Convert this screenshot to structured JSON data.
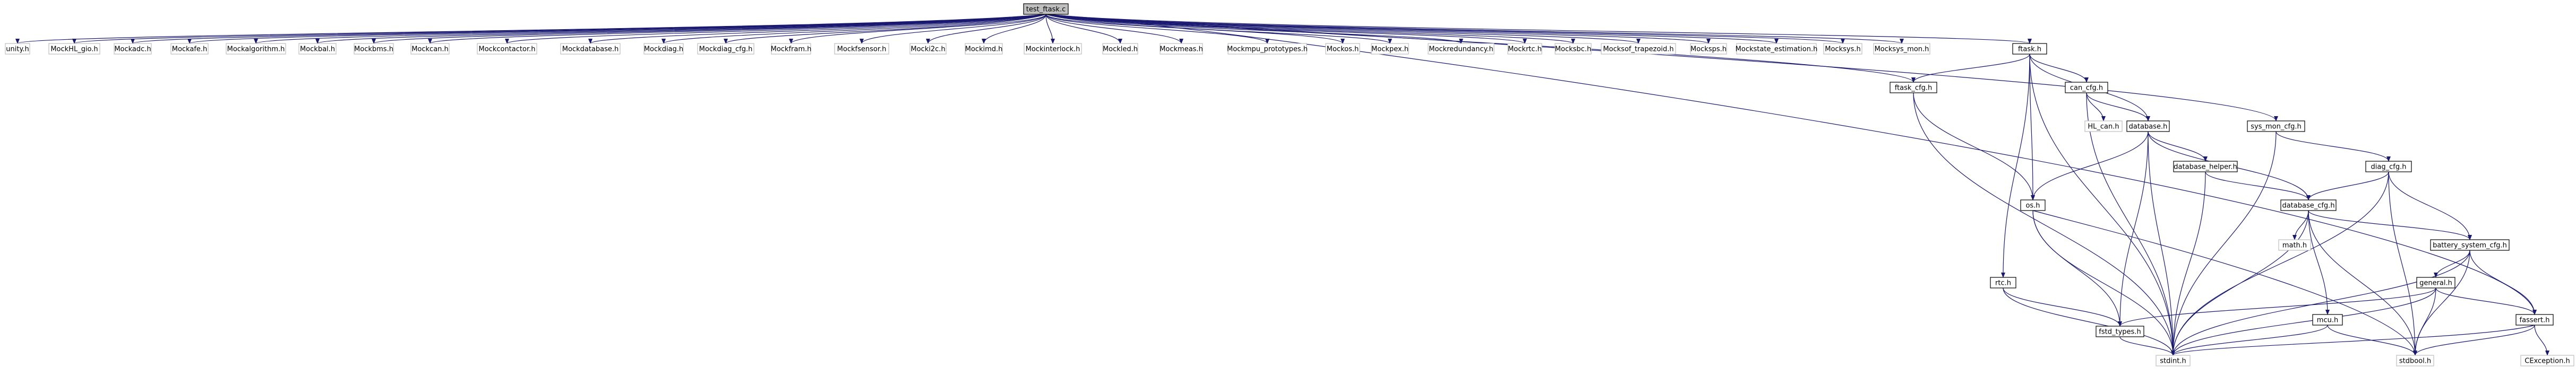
{
  "colors": {
    "root_fill": "#bfbfbf",
    "node_fill": "#ffffff",
    "node_border": "#000000",
    "external_border": "#bfbfbf",
    "edge": "#191970",
    "text": "#000000"
  },
  "graph": {
    "root": {
      "id": "root",
      "label": "test_ftask.c"
    },
    "nodes": [
      {
        "id": "unity",
        "label": "unity.h",
        "external": true
      },
      {
        "id": "mhal_gpio",
        "label": "MockHL_gio.h",
        "external": true
      },
      {
        "id": "madc",
        "label": "Mockadc.h",
        "external": true
      },
      {
        "id": "mafe",
        "label": "Mockafe.h",
        "external": true
      },
      {
        "id": "malgo",
        "label": "Mockalgorithm.h",
        "external": true
      },
      {
        "id": "mbal",
        "label": "Mockbal.h",
        "external": true
      },
      {
        "id": "mbms",
        "label": "Mockbms.h",
        "external": true
      },
      {
        "id": "mcan",
        "label": "Mockcan.h",
        "external": true
      },
      {
        "id": "mcontactor",
        "label": "Mockcontactor.h",
        "external": true
      },
      {
        "id": "mdatabase",
        "label": "Mockdatabase.h",
        "external": true
      },
      {
        "id": "mdiag",
        "label": "Mockdiag.h",
        "external": true
      },
      {
        "id": "mdiagcfg",
        "label": "Mockdiag_cfg.h",
        "external": true
      },
      {
        "id": "mfram",
        "label": "Mockfram.h",
        "external": true
      },
      {
        "id": "mfsensor",
        "label": "Mockfsensor.h",
        "external": true
      },
      {
        "id": "mi2c",
        "label": "Mocki2c.h",
        "external": true
      },
      {
        "id": "mimd",
        "label": "Mockimd.h",
        "external": true
      },
      {
        "id": "minterlock",
        "label": "Mockinterlock.h",
        "external": true
      },
      {
        "id": "mled",
        "label": "Mockled.h",
        "external": true
      },
      {
        "id": "mmeas",
        "label": "Mockmeas.h",
        "external": true
      },
      {
        "id": "mmpu",
        "label": "Mockmpu_prototypes.h",
        "external": true
      },
      {
        "id": "mos",
        "label": "Mockos.h",
        "external": true
      },
      {
        "id": "mpex",
        "label": "Mockpex.h",
        "external": true
      },
      {
        "id": "mredundancy",
        "label": "Mockredundancy.h",
        "external": true
      },
      {
        "id": "mrtc",
        "label": "Mockrtc.h",
        "external": true
      },
      {
        "id": "msbc",
        "label": "Mocksbc.h",
        "external": true
      },
      {
        "id": "msoftrap",
        "label": "Mocksof_trapezoid.h",
        "external": true
      },
      {
        "id": "msps",
        "label": "Mocksps.h",
        "external": true
      },
      {
        "id": "mstate",
        "label": "Mockstate_estimation.h",
        "external": true
      },
      {
        "id": "msys",
        "label": "Mocksys.h",
        "external": true
      },
      {
        "id": "msysmon",
        "label": "Mocksys_mon.h",
        "external": true
      },
      {
        "id": "ftask",
        "label": "ftask.h",
        "external": false
      },
      {
        "id": "ftaskcfg",
        "label": "ftask_cfg.h",
        "external": false
      },
      {
        "id": "cancfg",
        "label": "can_cfg.h",
        "external": false
      },
      {
        "id": "hlcan",
        "label": "HL_can.h",
        "external": true
      },
      {
        "id": "database",
        "label": "database.h",
        "external": false
      },
      {
        "id": "syscfg",
        "label": "sys_mon_cfg.h",
        "external": false
      },
      {
        "id": "diagcfg",
        "label": "diag_cfg.h",
        "external": false
      },
      {
        "id": "dbhelper",
        "label": "database_helper.h",
        "external": false
      },
      {
        "id": "dbcfg",
        "label": "database_cfg.h",
        "external": false
      },
      {
        "id": "os",
        "label": "os.h",
        "external": false
      },
      {
        "id": "mathh",
        "label": "math.h",
        "external": true
      },
      {
        "id": "bscfg",
        "label": "battery_system_cfg.h",
        "external": false
      },
      {
        "id": "general",
        "label": "general.h",
        "external": false
      },
      {
        "id": "rtc",
        "label": "rtc.h",
        "external": false
      },
      {
        "id": "mcu",
        "label": "mcu.h",
        "external": false
      },
      {
        "id": "fassert",
        "label": "fassert.h",
        "external": false
      },
      {
        "id": "fstd",
        "label": "fstd_types.h",
        "external": false
      },
      {
        "id": "cexc",
        "label": "CException.h",
        "external": true
      },
      {
        "id": "stdint",
        "label": "stdint.h",
        "external": true
      },
      {
        "id": "stdbool",
        "label": "stdbool.h",
        "external": true
      }
    ],
    "edges": [
      [
        "root",
        "unity"
      ],
      [
        "root",
        "mhal_gpio"
      ],
      [
        "root",
        "madc"
      ],
      [
        "root",
        "mafe"
      ],
      [
        "root",
        "malgo"
      ],
      [
        "root",
        "mbal"
      ],
      [
        "root",
        "mbms"
      ],
      [
        "root",
        "mcan"
      ],
      [
        "root",
        "mcontactor"
      ],
      [
        "root",
        "mdatabase"
      ],
      [
        "root",
        "mdiag"
      ],
      [
        "root",
        "mdiagcfg"
      ],
      [
        "root",
        "mfram"
      ],
      [
        "root",
        "mfsensor"
      ],
      [
        "root",
        "mi2c"
      ],
      [
        "root",
        "mimd"
      ],
      [
        "root",
        "minterlock"
      ],
      [
        "root",
        "mled"
      ],
      [
        "root",
        "mmeas"
      ],
      [
        "root",
        "mmpu"
      ],
      [
        "root",
        "mos"
      ],
      [
        "root",
        "mpex"
      ],
      [
        "root",
        "mredundancy"
      ],
      [
        "root",
        "mrtc"
      ],
      [
        "root",
        "msbc"
      ],
      [
        "root",
        "msoftrap"
      ],
      [
        "root",
        "msps"
      ],
      [
        "root",
        "mstate"
      ],
      [
        "root",
        "msys"
      ],
      [
        "root",
        "msysmon"
      ],
      [
        "root",
        "ftask"
      ],
      [
        "root",
        "ftaskcfg"
      ],
      [
        "root",
        "syscfg"
      ],
      [
        "root",
        "fassert"
      ],
      [
        "ftask",
        "ftaskcfg"
      ],
      [
        "ftask",
        "cancfg"
      ],
      [
        "ftask",
        "database"
      ],
      [
        "ftask",
        "os"
      ],
      [
        "ftask",
        "rtc"
      ],
      [
        "ftask",
        "stdint"
      ],
      [
        "ftaskcfg",
        "os"
      ],
      [
        "ftaskcfg",
        "stdint"
      ],
      [
        "cancfg",
        "hlcan"
      ],
      [
        "cancfg",
        "database"
      ],
      [
        "cancfg",
        "stdint"
      ],
      [
        "database",
        "dbhelper"
      ],
      [
        "database",
        "dbcfg"
      ],
      [
        "database",
        "os"
      ],
      [
        "database",
        "fstd"
      ],
      [
        "database",
        "stdint"
      ],
      [
        "syscfg",
        "diagcfg"
      ],
      [
        "syscfg",
        "stdint"
      ],
      [
        "diagcfg",
        "dbcfg"
      ],
      [
        "diagcfg",
        "bscfg"
      ],
      [
        "diagcfg",
        "stdint"
      ],
      [
        "diagcfg",
        "stdbool"
      ],
      [
        "dbhelper",
        "dbcfg"
      ],
      [
        "dbhelper",
        "stdint"
      ],
      [
        "dbcfg",
        "mathh"
      ],
      [
        "dbcfg",
        "bscfg"
      ],
      [
        "dbcfg",
        "mcu"
      ],
      [
        "dbcfg",
        "stdint"
      ],
      [
        "dbcfg",
        "stdbool"
      ],
      [
        "os",
        "fstd"
      ],
      [
        "os",
        "stdint"
      ],
      [
        "os",
        "stdbool"
      ],
      [
        "bscfg",
        "general"
      ],
      [
        "bscfg",
        "fassert"
      ],
      [
        "bscfg",
        "stdint"
      ],
      [
        "bscfg",
        "stdbool"
      ],
      [
        "general",
        "fstd"
      ],
      [
        "general",
        "fassert"
      ],
      [
        "general",
        "stdint"
      ],
      [
        "general",
        "stdbool"
      ],
      [
        "rtc",
        "fstd"
      ],
      [
        "rtc",
        "stdint"
      ],
      [
        "mcu",
        "stdint"
      ],
      [
        "mcu",
        "stdbool"
      ],
      [
        "fassert",
        "cexc"
      ],
      [
        "fassert",
        "stdint"
      ],
      [
        "fassert",
        "stdbool"
      ],
      [
        "fstd",
        "stdint"
      ]
    ]
  }
}
